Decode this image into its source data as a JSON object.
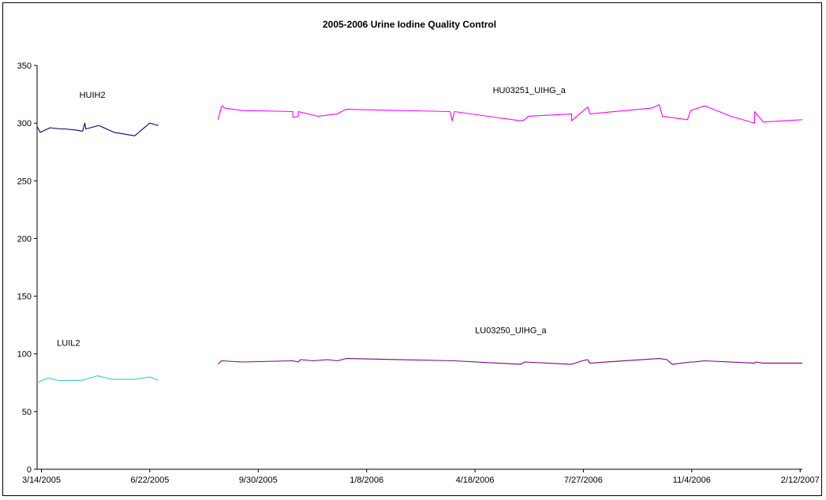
{
  "chart_data": {
    "type": "line",
    "title": "2005-2006 Urine Iodine Quality Control",
    "xlabel": "",
    "ylabel": "",
    "ylim": [
      0,
      350
    ],
    "yticks": [
      0,
      50,
      100,
      150,
      200,
      250,
      300,
      350
    ],
    "xlim": [
      "2005-03-10",
      "2007-02-14"
    ],
    "xticks": [
      {
        "date": "2005-03-14",
        "label": "3/14/2005"
      },
      {
        "date": "2005-06-22",
        "label": "6/22/2005"
      },
      {
        "date": "2005-09-30",
        "label": "9/30/2005"
      },
      {
        "date": "2006-01-08",
        "label": "1/8/2006"
      },
      {
        "date": "2006-04-18",
        "label": "4/18/2006"
      },
      {
        "date": "2006-07-27",
        "label": "7/27/2006"
      },
      {
        "date": "2006-11-04",
        "label": "11/4/2006"
      },
      {
        "date": "2007-02-12",
        "label": "2/12/2007"
      }
    ],
    "grid": false,
    "legend": "none",
    "series": [
      {
        "name": "HUIH2",
        "color": "#000080",
        "points": [
          [
            "2005-03-10",
            297
          ],
          [
            "2005-03-13",
            292
          ],
          [
            "2005-03-22",
            296
          ],
          [
            "2005-04-01",
            295
          ],
          [
            "2005-04-05",
            295
          ],
          [
            "2005-04-15",
            294
          ],
          [
            "2005-04-21",
            293
          ],
          [
            "2005-04-23",
            300
          ],
          [
            "2005-04-24",
            295
          ],
          [
            "2005-05-06",
            298
          ],
          [
            "2005-05-20",
            292
          ],
          [
            "2005-06-08",
            289
          ],
          [
            "2005-06-22",
            300
          ],
          [
            "2005-06-30",
            298
          ]
        ],
        "label_date": "2005-04-30",
        "label_value": 322
      },
      {
        "name": "LUIL2",
        "color": "#33CCCC",
        "points": [
          [
            "2005-03-10",
            75
          ],
          [
            "2005-03-20",
            79
          ],
          [
            "2005-03-30",
            77
          ],
          [
            "2005-04-20",
            77
          ],
          [
            "2005-05-05",
            81
          ],
          [
            "2005-05-18",
            78
          ],
          [
            "2005-06-08",
            78
          ],
          [
            "2005-06-22",
            80
          ],
          [
            "2005-06-30",
            77
          ]
        ],
        "label_date": "2005-04-08",
        "label_value": 107
      },
      {
        "name": "HU03251_UIHG_a",
        "color": "#FF00FF",
        "points": [
          [
            "2005-08-24",
            303
          ],
          [
            "2005-08-27",
            314
          ],
          [
            "2005-08-28",
            315
          ],
          [
            "2005-08-30",
            313
          ],
          [
            "2005-09-15",
            311
          ],
          [
            "2005-11-01",
            310
          ],
          [
            "2005-11-01",
            305
          ],
          [
            "2005-11-06",
            306
          ],
          [
            "2005-11-06",
            310
          ],
          [
            "2005-11-24",
            306
          ],
          [
            "2005-12-12",
            308
          ],
          [
            "2005-12-20",
            312
          ],
          [
            "2006-03-26",
            310
          ],
          [
            "2006-03-28",
            302
          ],
          [
            "2006-03-30",
            310
          ],
          [
            "2006-05-30",
            302
          ],
          [
            "2006-06-03",
            303
          ],
          [
            "2006-06-06",
            306
          ],
          [
            "2006-07-16",
            308
          ],
          [
            "2006-07-16",
            302
          ],
          [
            "2006-07-31",
            314
          ],
          [
            "2006-08-02",
            308
          ],
          [
            "2006-09-28",
            313
          ],
          [
            "2006-10-05",
            316
          ],
          [
            "2006-10-08",
            306
          ],
          [
            "2006-10-31",
            303
          ],
          [
            "2006-11-03",
            311
          ],
          [
            "2006-11-16",
            315
          ],
          [
            "2006-12-10",
            306
          ],
          [
            "2007-01-01",
            300
          ],
          [
            "2007-01-01",
            310
          ],
          [
            "2007-01-09",
            301
          ],
          [
            "2007-02-14",
            303
          ]
        ],
        "label_date": "2006-06-07",
        "label_value": 326
      },
      {
        "name": "LU03250_UIHG_a",
        "color": "#800080",
        "points": [
          [
            "2005-08-24",
            91
          ],
          [
            "2005-08-27",
            94
          ],
          [
            "2005-09-15",
            93
          ],
          [
            "2005-11-01",
            94
          ],
          [
            "2005-11-06",
            93
          ],
          [
            "2005-11-08",
            95
          ],
          [
            "2005-11-20",
            94
          ],
          [
            "2005-12-03",
            95
          ],
          [
            "2005-12-12",
            94
          ],
          [
            "2005-12-20",
            96
          ],
          [
            "2006-03-30",
            94
          ],
          [
            "2006-05-30",
            91
          ],
          [
            "2006-06-03",
            93
          ],
          [
            "2006-07-16",
            91
          ],
          [
            "2006-07-26",
            94
          ],
          [
            "2006-07-31",
            95
          ],
          [
            "2006-08-02",
            92
          ],
          [
            "2006-10-05",
            96
          ],
          [
            "2006-10-12",
            95
          ],
          [
            "2006-10-17",
            91
          ],
          [
            "2006-11-03",
            93
          ],
          [
            "2006-11-06",
            93
          ],
          [
            "2006-11-16",
            94
          ],
          [
            "2007-01-01",
            92
          ],
          [
            "2007-01-02",
            93
          ],
          [
            "2007-01-09",
            92
          ],
          [
            "2007-02-14",
            92
          ]
        ],
        "label_date": "2006-05-21",
        "label_value": 118
      }
    ]
  }
}
